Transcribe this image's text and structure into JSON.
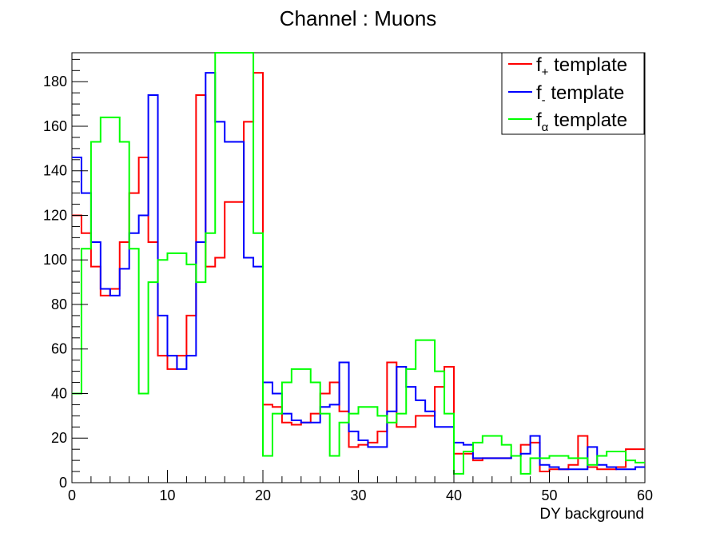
{
  "chart_data": {
    "type": "histogram-step",
    "title": "Channel : Muons",
    "xlabel": "DY background",
    "ylabel": "",
    "xlim": [
      0,
      60
    ],
    "ylim": [
      0,
      193
    ],
    "bin_width": 1,
    "x_ticks": [
      0,
      10,
      20,
      30,
      40,
      50,
      60
    ],
    "y_ticks": [
      0,
      20,
      40,
      60,
      80,
      100,
      120,
      140,
      160,
      180
    ],
    "grid": false,
    "legend_position": "top-right",
    "series": [
      {
        "label_main": "f",
        "label_sub": "+",
        "label_rest": " template",
        "color": "#ff0000",
        "values": [
          120,
          112,
          97,
          84,
          87,
          108,
          130,
          146,
          108,
          57,
          51,
          57,
          75,
          174,
          97,
          101,
          126,
          126,
          162,
          184,
          35,
          34,
          27,
          26,
          27,
          31,
          40,
          45,
          32,
          16,
          17,
          18,
          23,
          54,
          25,
          25,
          30,
          30,
          43,
          52,
          13,
          13,
          10,
          11,
          11,
          11,
          12,
          17,
          18,
          5,
          6,
          6,
          8,
          21,
          7,
          6,
          6,
          7,
          15,
          15
        ]
      },
      {
        "label_main": "f",
        "label_sub": "-",
        "label_rest": " template",
        "color": "#0000ff",
        "values": [
          146,
          130,
          108,
          87,
          84,
          96,
          112,
          120,
          174,
          75,
          57,
          51,
          57,
          108,
          184,
          162,
          153,
          153,
          101,
          97,
          45,
          40,
          31,
          28,
          27,
          27,
          34,
          35,
          54,
          23,
          19,
          16,
          16,
          32,
          52,
          43,
          37,
          32,
          25,
          25,
          18,
          17,
          11,
          11,
          11,
          11,
          12,
          13,
          21,
          8,
          7,
          6,
          6,
          6,
          16,
          8,
          7,
          6,
          6,
          7
        ]
      },
      {
        "label_main": "f",
        "label_sub": "α",
        "label_rest": " template",
        "color": "#00ff00",
        "values": [
          40,
          105,
          153,
          164,
          164,
          153,
          105,
          40,
          90,
          100,
          103,
          103,
          98,
          90,
          112,
          193,
          193,
          193,
          193,
          112,
          12,
          31,
          45,
          51,
          51,
          45,
          31,
          12,
          27,
          31,
          34,
          34,
          30,
          27,
          31,
          51,
          64,
          64,
          50,
          31,
          4,
          14,
          18,
          21,
          21,
          17,
          12,
          4,
          11,
          11,
          12,
          12,
          11,
          11,
          8,
          12,
          14,
          14,
          10,
          9
        ]
      }
    ]
  }
}
